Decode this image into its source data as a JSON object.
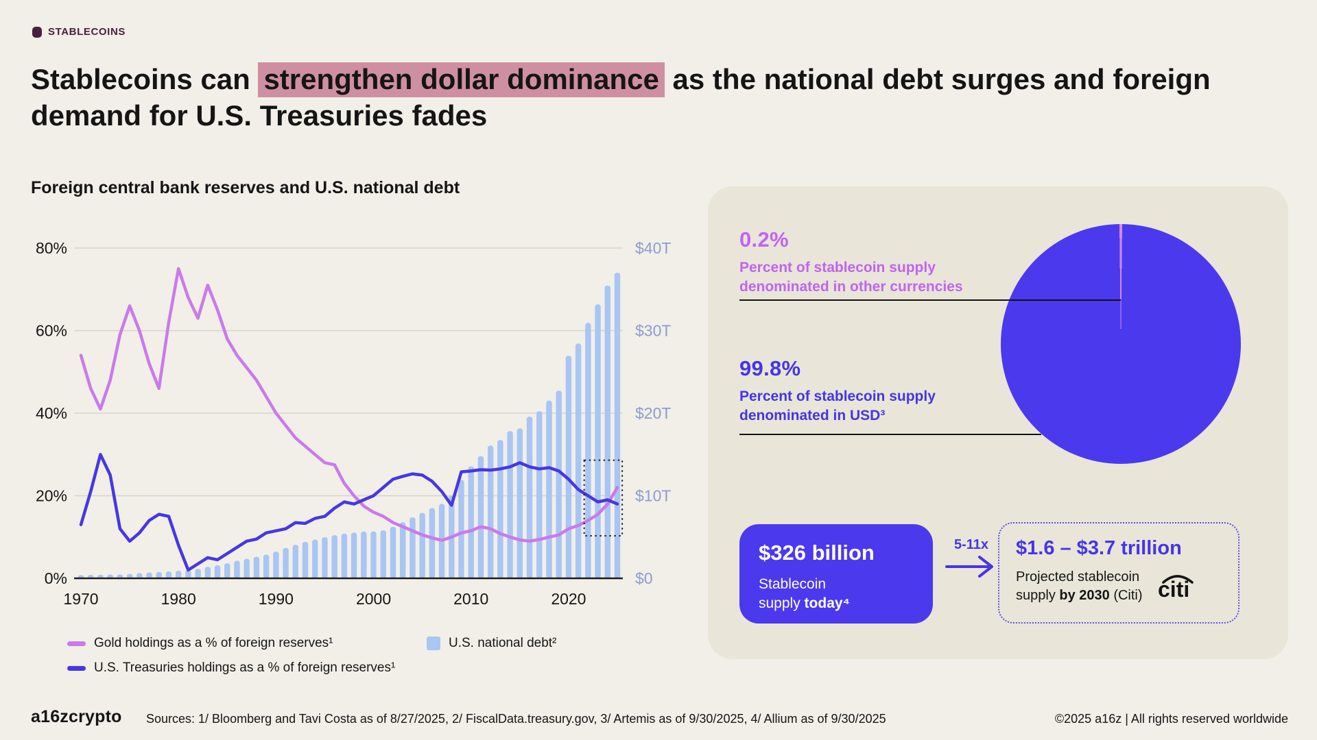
{
  "theme": {
    "bg": "#f1efe7",
    "panel_bg": "#e9e6d9",
    "ink": "#151515",
    "tag_color": "#49203e",
    "highlight_pink": "#cf8fa3",
    "line_pink": "#cb79ec",
    "line_blue": "#4637e3",
    "bar_blue": "#a9c5f4",
    "right_axis_color": "#8d9cd3",
    "gridline": "#d8d5c9",
    "accent_purple": "#c263f2",
    "accent_blue": "#4534ea",
    "pie_blue": "#4b39ee",
    "pie_sliver_pink": "#d789f0",
    "dotted_border": "#5a49f0"
  },
  "tag": {
    "label": "STABLECOINS"
  },
  "title": {
    "pre": "Stablecoins can ",
    "highlight": "strengthen dollar dominance",
    "post": " as the national debt surges and foreign demand for U.S. Treasuries fades"
  },
  "chart": {
    "title": "Foreign central bank reserves and U.S. national debt",
    "legend": [
      {
        "label": "Gold holdings as a % of foreign reserves¹"
      },
      {
        "label": "U.S. Treasuries holdings as a % of foreign reserves¹"
      },
      {
        "label": "U.S. national debt²"
      }
    ]
  },
  "chart_data": {
    "type": "combo",
    "x_label": "Year",
    "x_range": [
      1970,
      2025
    ],
    "x_ticks": [
      1970,
      1980,
      1990,
      2000,
      2010,
      2020
    ],
    "left_axis": {
      "range": [
        0,
        80
      ],
      "tick_values": [
        0,
        20,
        40,
        60,
        80
      ],
      "tick_labels": [
        "0%",
        "20%",
        "40%",
        "60%",
        "80%"
      ]
    },
    "right_axis": {
      "range": [
        0,
        40
      ],
      "tick_values": [
        0,
        10,
        20,
        30,
        40
      ],
      "tick_labels": [
        "$0",
        "$10T",
        "$20T",
        "$30T",
        "$40T"
      ]
    },
    "years": [
      1970,
      1971,
      1972,
      1973,
      1974,
      1975,
      1976,
      1977,
      1978,
      1979,
      1980,
      1981,
      1982,
      1983,
      1984,
      1985,
      1986,
      1987,
      1988,
      1989,
      1990,
      1991,
      1992,
      1993,
      1994,
      1995,
      1996,
      1997,
      1998,
      1999,
      2000,
      2001,
      2002,
      2003,
      2004,
      2005,
      2006,
      2007,
      2008,
      2009,
      2010,
      2011,
      2012,
      2013,
      2014,
      2015,
      2016,
      2017,
      2018,
      2019,
      2020,
      2021,
      2022,
      2023,
      2024,
      2025
    ],
    "series": [
      {
        "name": "Gold holdings as a % of foreign reserves",
        "type": "line",
        "axis": "left",
        "unit": "%",
        "values": [
          54,
          46,
          41,
          48,
          59,
          66,
          60,
          52,
          46,
          62,
          75,
          68,
          63,
          71,
          65,
          58,
          54,
          51,
          48,
          44,
          40,
          37,
          34,
          32,
          30,
          28,
          27.5,
          23,
          20,
          17.5,
          16,
          15,
          13.5,
          12.5,
          11.5,
          10.5,
          9.8,
          9.2,
          10,
          11,
          11.5,
          12.5,
          12,
          10.8,
          10,
          9.3,
          9,
          9.4,
          10,
          10.5,
          12,
          12.8,
          14,
          15.5,
          18,
          22
        ]
      },
      {
        "name": "U.S. Treasuries holdings as a % of foreign reserves",
        "type": "line",
        "axis": "left",
        "unit": "%",
        "values": [
          13,
          21,
          30,
          25,
          12,
          9,
          11,
          14,
          15.5,
          15,
          8,
          2,
          3.5,
          5,
          4.5,
          6,
          7.5,
          9,
          9.5,
          11,
          11.5,
          12,
          13.5,
          13.3,
          14.5,
          15,
          17,
          18.5,
          18,
          19,
          20,
          22,
          24,
          24.7,
          25.3,
          25,
          23.5,
          21,
          17.7,
          25.8,
          26,
          26.3,
          26.2,
          26.5,
          27,
          28,
          27,
          26.5,
          26.8,
          26,
          24,
          21.5,
          20,
          18.5,
          19,
          18
        ]
      },
      {
        "name": "U.S. national debt",
        "type": "bar",
        "axis": "right",
        "unit": "$T",
        "values": [
          0.37,
          0.4,
          0.43,
          0.46,
          0.47,
          0.53,
          0.62,
          0.7,
          0.77,
          0.83,
          0.91,
          1.0,
          1.14,
          1.38,
          1.57,
          1.82,
          2.13,
          2.35,
          2.6,
          2.86,
          3.23,
          3.67,
          4.06,
          4.41,
          4.69,
          4.97,
          5.22,
          5.41,
          5.53,
          5.66,
          5.67,
          5.81,
          6.23,
          6.78,
          7.38,
          7.93,
          8.51,
          9.01,
          10.02,
          11.91,
          13.56,
          14.79,
          16.07,
          16.74,
          17.82,
          18.15,
          19.57,
          20.24,
          21.52,
          22.72,
          26.95,
          28.43,
          30.93,
          33.17,
          35.46,
          37.0
        ]
      }
    ],
    "annotation_box": {
      "x_years": [
        2021.6,
        2025.5
      ],
      "y_pct": [
        10.3,
        28.6
      ]
    },
    "grid": "horizontal",
    "legend_position": "bottom"
  },
  "panel": {
    "stat_other": {
      "value": "0.2%",
      "label_line1": "Percent of stablecoin supply",
      "label_line2": "denominated in other currencies"
    },
    "stat_usd": {
      "value": "99.8%",
      "label_line1": "Percent of stablecoin supply",
      "label_line2": "denominated in USD³"
    },
    "pie": {
      "other_pct": 0.2,
      "usd_pct": 99.8
    },
    "supply_box": {
      "value": "$326 billion",
      "line1": "Stablecoin",
      "line2_regular": "supply ",
      "line2_bold": "today⁴"
    },
    "arrow": {
      "multiplier": "5-11x"
    },
    "projection_box": {
      "value": "$1.6 – $3.7 trillion",
      "line1": "Projected stablecoin",
      "line2_pre": "supply ",
      "line2_bold": "by 2030",
      "line2_post": " (Citi)",
      "logo": "citi"
    }
  },
  "footer": {
    "logo": "a16zcrypto",
    "sources": "Sources: 1/ Bloomberg and Tavi Costa as of 8/27/2025, 2/ FiscalData.treasury.gov, 3/ Artemis as of 9/30/2025, 4/ Allium as of 9/30/2025",
    "rights": "©2025 a16z | All rights reserved worldwide"
  }
}
